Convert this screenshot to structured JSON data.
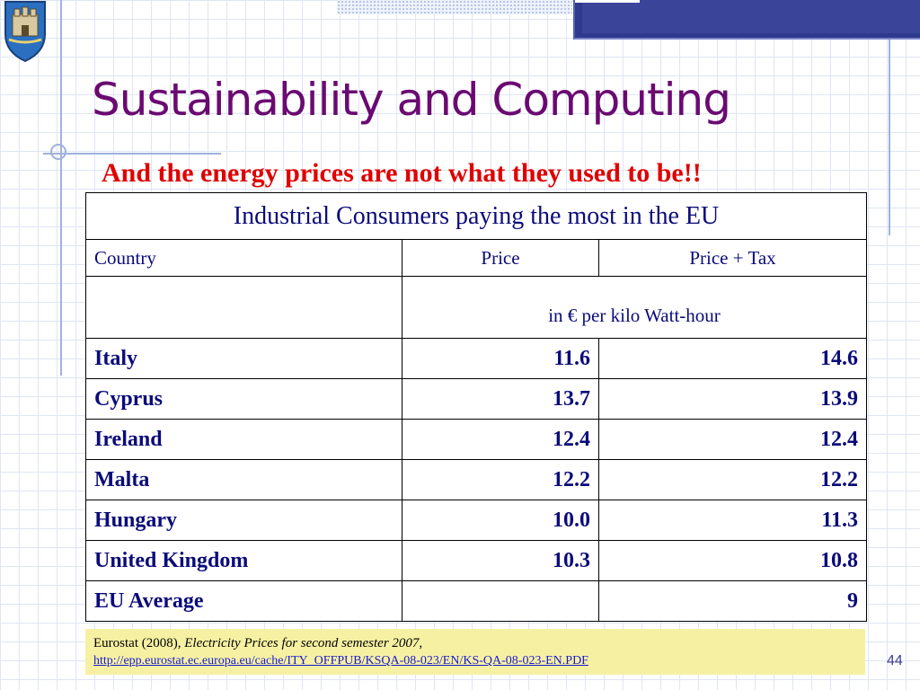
{
  "slide": {
    "title": "Sustainability and Computing",
    "subtitle": "And the energy prices are not what they used to be!!",
    "page_number": "44"
  },
  "table": {
    "caption": "Industrial Consumers paying the most in the EU",
    "columns": [
      "Country",
      "Price",
      "Price + Tax"
    ],
    "unit_note": "in € per kilo Watt-hour",
    "rows": [
      {
        "country": "Italy",
        "price": "11.6",
        "price_tax": "14.6"
      },
      {
        "country": "Cyprus",
        "price": "13.7",
        "price_tax": "13.9"
      },
      {
        "country": "Ireland",
        "price": "12.4",
        "price_tax": "12.4"
      },
      {
        "country": "Malta",
        "price": "12.2",
        "price_tax": "12.2"
      },
      {
        "country": "Hungary",
        "price": "10.0",
        "price_tax": "11.3"
      },
      {
        "country": "United Kingdom",
        "price": "10.3",
        "price_tax": "10.8"
      },
      {
        "country": "EU Average",
        "price": "",
        "price_tax": "9"
      }
    ]
  },
  "source": {
    "author": "Eurostat (2008), ",
    "work": "Electricity Prices for second semester 2007",
    "sep": ",",
    "url": "http://epp.eurostat.ec.europa.eu/cache/ITY_OFFPUB/KSQA-08-023/EN/KS-QA-08-023-EN.PDF"
  },
  "colors": {
    "title": "#6a0a72",
    "subtitle": "#e00000",
    "table_text": "#0b0b7a",
    "source_bg": "#f6f1a2",
    "accent_block": "#2f3a8f"
  },
  "icons": [
    "crest-logo-icon"
  ]
}
